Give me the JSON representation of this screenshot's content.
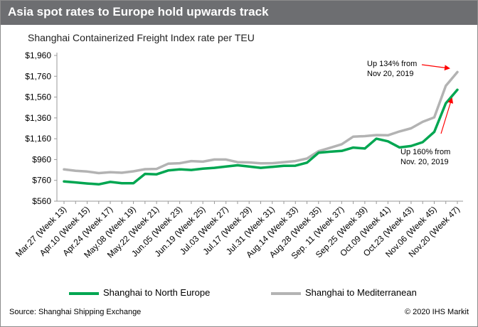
{
  "header": {
    "title": "Asia spot rates to Europe hold upwards track"
  },
  "subtitle": "Shanghai Containerized Freight Index rate per TEU",
  "footer": {
    "source": "Source: Shanghai Shipping Exchange",
    "copyright": "© 2020 IHS Markit"
  },
  "colors": {
    "north_europe": "#00a651",
    "mediterranean": "#b3b3b3",
    "header_bg": "#6d6e71",
    "arrow": "#ff0000"
  },
  "chart_data": {
    "type": "line",
    "title": "Shanghai Containerized Freight Index rate per TEU",
    "ylim": [
      560,
      1960
    ],
    "yticks": [
      560,
      760,
      960,
      1160,
      1360,
      1560,
      1760,
      1960
    ],
    "ytick_labels": [
      "$560",
      "$760",
      "$960",
      "$1,160",
      "$1,360",
      "$1,560",
      "$1,760",
      "$1,960"
    ],
    "xtick_labels": [
      "Mar.27 (Week 13)",
      "Apr.10 (Week 15)",
      "Apr.24 (Week 17)",
      "May.08 (Week 19)",
      "May.22 (Week 21)",
      "Jun.05 (Week 23)",
      "Jun.19 (Week 25)",
      "Jul.03 (Week 27)",
      "Jul.17 (Week 29)",
      "Jul.31 (Week 31)",
      "Aug.14 (Week 33)",
      "Aug.28 (Week 35)",
      "Sep. 11 (Week 37)",
      "Sep.25 (Week 39)",
      "Oct.09 (Week 41)",
      "Oct.23 (Week 43)",
      "Nov.06 (Week 45)",
      "Nov.20 (Week 47)"
    ],
    "x_count": 35,
    "grid": false,
    "legend": "bottom",
    "series": [
      {
        "name": "Shanghai to North Europe",
        "color": "#00a651",
        "values": [
          750,
          740,
          730,
          722,
          745,
          733,
          733,
          822,
          818,
          855,
          866,
          860,
          873,
          880,
          893,
          905,
          893,
          880,
          890,
          900,
          901,
          930,
          1025,
          1035,
          1043,
          1075,
          1066,
          1160,
          1135,
          1076,
          1090,
          1127,
          1225,
          1500,
          1630
        ]
      },
      {
        "name": "Shanghai to Mediterranean",
        "color": "#b3b3b3",
        "values": [
          865,
          852,
          845,
          830,
          838,
          833,
          847,
          867,
          870,
          920,
          925,
          945,
          940,
          960,
          960,
          935,
          932,
          923,
          925,
          935,
          945,
          970,
          1040,
          1073,
          1107,
          1180,
          1185,
          1195,
          1193,
          1230,
          1260,
          1322,
          1365,
          1668,
          1800
        ]
      }
    ],
    "annotations": [
      {
        "text_lines": [
          "Up 134% from",
          "Nov 20, 2019"
        ]
      },
      {
        "text_lines": [
          "Up  160% from",
          "Nov. 20, 2019"
        ]
      }
    ]
  }
}
